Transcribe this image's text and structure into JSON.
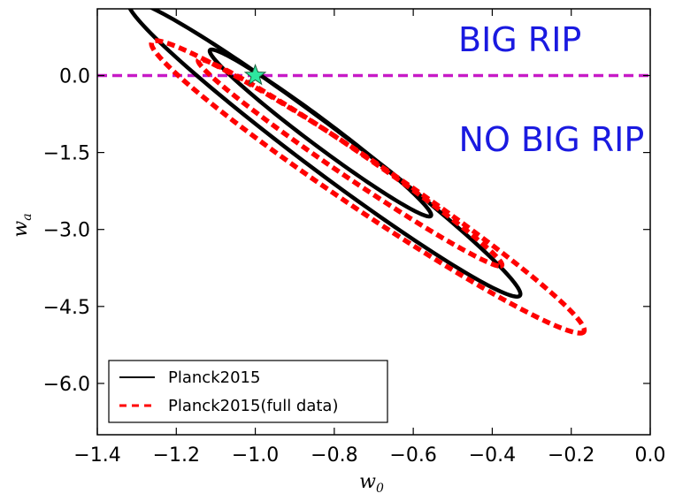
{
  "chart_data": {
    "type": "contour",
    "title": "",
    "xlabel": {
      "base": "w",
      "sub": "0"
    },
    "ylabel": {
      "base": "w",
      "sub": "a"
    },
    "xlim": [
      -1.4,
      0.0
    ],
    "ylim": [
      -7.0,
      1.3
    ],
    "xticks": [
      -1.4,
      -1.2,
      -1.0,
      -0.8,
      -0.6,
      -0.4,
      -0.2,
      0.0
    ],
    "xtick_labels": [
      "−1.4",
      "−1.2",
      "−1.0",
      "−0.8",
      "−0.6",
      "−0.4",
      "−0.2",
      "0.0"
    ],
    "yticks": [
      0.0,
      -1.5,
      -3.0,
      -4.5,
      -6.0
    ],
    "ytick_labels": [
      "0.0",
      "−1.5",
      "−3.0",
      "−4.5",
      "−6.0"
    ],
    "reference_line": {
      "y": 0.0,
      "color": "#c71ac7",
      "style": "dashed"
    },
    "marker": {
      "x": -1.0,
      "y": 0.0,
      "shape": "star",
      "fill": "#2ee6a0",
      "stroke": "#1b5e3b"
    },
    "annotations": [
      {
        "text": "BIG RIP",
        "x": -0.33,
        "y": 0.7,
        "color": "#1a1ae0"
      },
      {
        "text": "NO BIG RIP",
        "x": -0.25,
        "y": -1.25,
        "color": "#1a1ae0"
      }
    ],
    "series": [
      {
        "name": "Planck2015",
        "color": "#000000",
        "style": "solid",
        "contours": [
          {
            "level": "68%",
            "center": [
              -0.835,
              -1.12
            ],
            "semi_major": 1.65,
            "semi_minor": 0.052,
            "slope": -5.9
          },
          {
            "level": "95%",
            "center": [
              -0.825,
              -1.43
            ],
            "semi_major": 2.92,
            "semi_minor": 0.092,
            "slope": -5.9
          }
        ]
      },
      {
        "name": "Planck2015(full data)",
        "color": "#ff0000",
        "style": "dashed",
        "contours": [
          {
            "level": "68%",
            "center": [
              -0.76,
              -1.7
            ],
            "semi_major": 2.05,
            "semi_minor": 0.06,
            "slope": -5.3
          },
          {
            "level": "95%",
            "center": [
              -0.715,
              -2.17
            ],
            "semi_major": 2.9,
            "semi_minor": 0.108,
            "slope": -5.3
          }
        ]
      }
    ],
    "legend": {
      "position": "lower-left",
      "entries": [
        {
          "label": "Planck2015",
          "color": "#000000",
          "style": "solid"
        },
        {
          "label": "Planck2015(full data)",
          "color": "#ff0000",
          "style": "dashed"
        }
      ]
    }
  }
}
